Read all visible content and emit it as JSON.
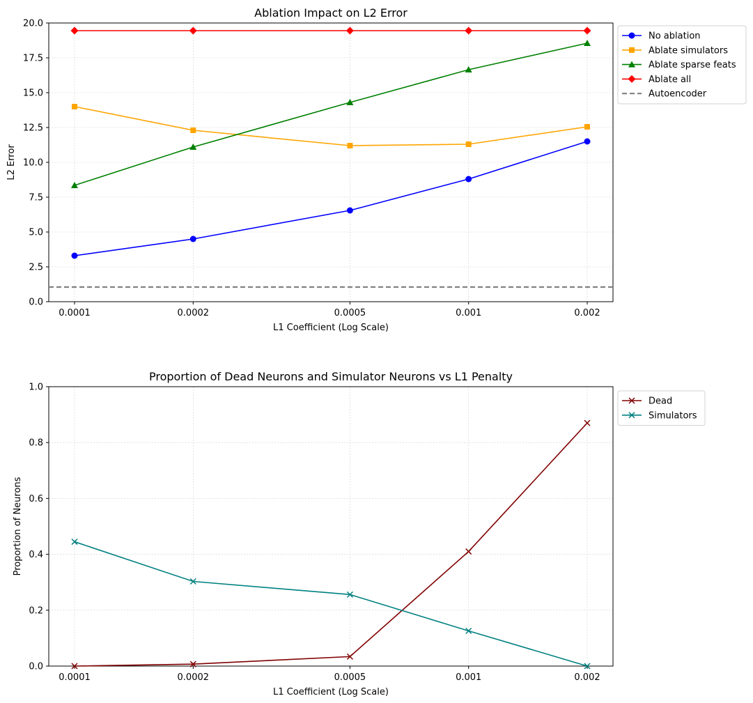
{
  "chart_data": [
    {
      "type": "line",
      "title": "Ablation Impact on L2 Error",
      "xlabel": "L1 Coefficient (Log Scale)",
      "ylabel": "L2 Error",
      "xscale": "log",
      "x": [
        0.0001,
        0.0002,
        0.0005,
        0.001,
        0.002
      ],
      "xticklabels": [
        "0.0001",
        "0.0002",
        "0.0005",
        "0.001",
        "0.002"
      ],
      "ylim": [
        0,
        20
      ],
      "yticks": [
        0,
        2.5,
        5,
        7.5,
        10,
        12.5,
        15,
        17.5,
        20
      ],
      "yticklabels": [
        "0.0",
        "2.5",
        "5.0",
        "7.5",
        "10.0",
        "12.5",
        "15.0",
        "17.5",
        "20.0"
      ],
      "grid": true,
      "legend_position": "outside top-right",
      "series": [
        {
          "name": "No ablation",
          "color": "#0000ff",
          "marker": "circle",
          "values": [
            3.3,
            4.5,
            6.55,
            8.8,
            11.5
          ]
        },
        {
          "name": "Ablate simulators",
          "color": "#ffa500",
          "marker": "square",
          "values": [
            14.0,
            12.3,
            11.2,
            11.3,
            12.55
          ]
        },
        {
          "name": "Ablate sparse feats",
          "color": "#008000",
          "marker": "triangle",
          "values": [
            8.35,
            11.1,
            14.3,
            16.65,
            18.55
          ]
        },
        {
          "name": "Ablate all",
          "color": "#ff0000",
          "marker": "diamond",
          "values": [
            19.45,
            19.45,
            19.45,
            19.45,
            19.45
          ]
        }
      ],
      "hlines": [
        {
          "name": "Autoencoder",
          "color": "#808080",
          "style": "dashed",
          "value": 1.05
        }
      ]
    },
    {
      "type": "line",
      "title": "Proportion of Dead Neurons and Simulator Neurons vs L1 Penalty",
      "xlabel": "L1 Coefficient (Log Scale)",
      "ylabel": "Proportion of Neurons",
      "xscale": "log",
      "x": [
        0.0001,
        0.0002,
        0.0005,
        0.001,
        0.002
      ],
      "xticklabels": [
        "0.0001",
        "0.0002",
        "0.0005",
        "0.001",
        "0.002"
      ],
      "ylim": [
        0,
        1
      ],
      "yticks": [
        0,
        0.2,
        0.4,
        0.6,
        0.8,
        1.0
      ],
      "yticklabels": [
        "0.0",
        "0.2",
        "0.4",
        "0.6",
        "0.8",
        "1.0"
      ],
      "grid": true,
      "legend_position": "outside top-right",
      "series": [
        {
          "name": "Dead",
          "color": "#800000",
          "marker": "x",
          "values": [
            0.0,
            0.007,
            0.034,
            0.41,
            0.87
          ]
        },
        {
          "name": "Simulators",
          "color": "#008080",
          "marker": "x",
          "values": [
            0.445,
            0.303,
            0.256,
            0.126,
            0.0
          ]
        }
      ],
      "hlines": []
    }
  ]
}
